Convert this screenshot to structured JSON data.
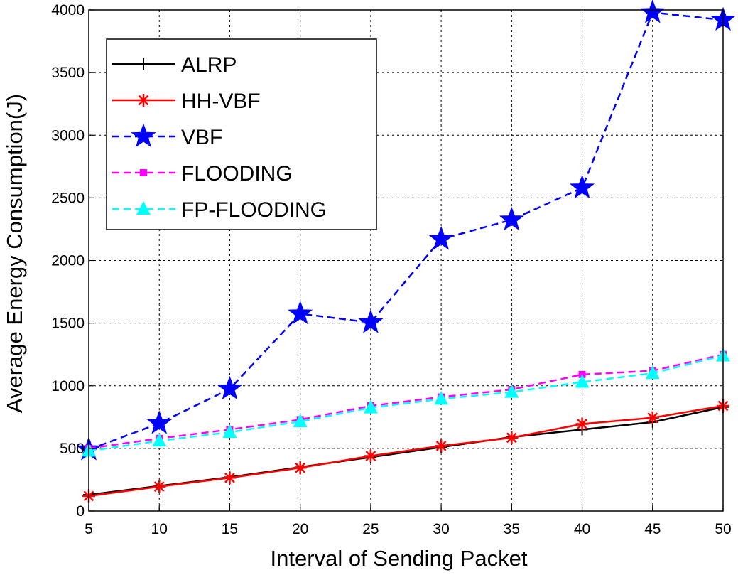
{
  "chart_data": {
    "type": "line",
    "title": "",
    "xlabel": "Interval of Sending Packet",
    "ylabel": "Average Energy Consumption(J)",
    "xlim": [
      5,
      50
    ],
    "ylim": [
      0,
      4000
    ],
    "grid": true,
    "legend_position": "top-left",
    "x": [
      5,
      10,
      15,
      20,
      25,
      30,
      35,
      40,
      45,
      50
    ],
    "x_ticks": [
      "5",
      "10",
      "15",
      "20",
      "25",
      "30",
      "35",
      "40",
      "45",
      "50"
    ],
    "y_ticks": [
      {
        "value": 0,
        "label": "0"
      },
      {
        "value": 500,
        "label": "500"
      },
      {
        "value": 1000,
        "label": "1000"
      },
      {
        "value": 1500,
        "label": "1500"
      },
      {
        "value": 2000,
        "label": "2000"
      },
      {
        "value": 2500,
        "label": "2500"
      },
      {
        "value": 3000,
        "label": "3000"
      },
      {
        "value": 3500,
        "label": "3500"
      },
      {
        "value": 4000,
        "label": "4000"
      }
    ],
    "series": [
      {
        "name": "ALRP",
        "color": "#000000",
        "dash": "solid",
        "marker": "plus",
        "values": [
          130,
          200,
          270,
          350,
          430,
          510,
          590,
          650,
          710,
          830
        ]
      },
      {
        "name": "HH-VBF",
        "color": "#ff0000",
        "dash": "solid",
        "marker": "asterisk",
        "values": [
          120,
          195,
          265,
          345,
          440,
          520,
          585,
          695,
          745,
          840
        ]
      },
      {
        "name": "VBF",
        "color": "#0000ff",
        "dash": "dashed",
        "marker": "star",
        "values": [
          490,
          700,
          975,
          1575,
          1505,
          2170,
          2325,
          2580,
          3980,
          3920
        ]
      },
      {
        "name": "FLOODING",
        "color": "#ff00ff",
        "dash": "dashed",
        "marker": "square",
        "values": [
          500,
          580,
          650,
          730,
          840,
          910,
          970,
          1090,
          1120,
          1250
        ]
      },
      {
        "name": "FP-FLOODING",
        "color": "#00ffff",
        "dash": "dashed",
        "marker": "triangle",
        "values": [
          480,
          560,
          630,
          715,
          825,
          895,
          950,
          1030,
          1100,
          1240
        ]
      }
    ]
  }
}
